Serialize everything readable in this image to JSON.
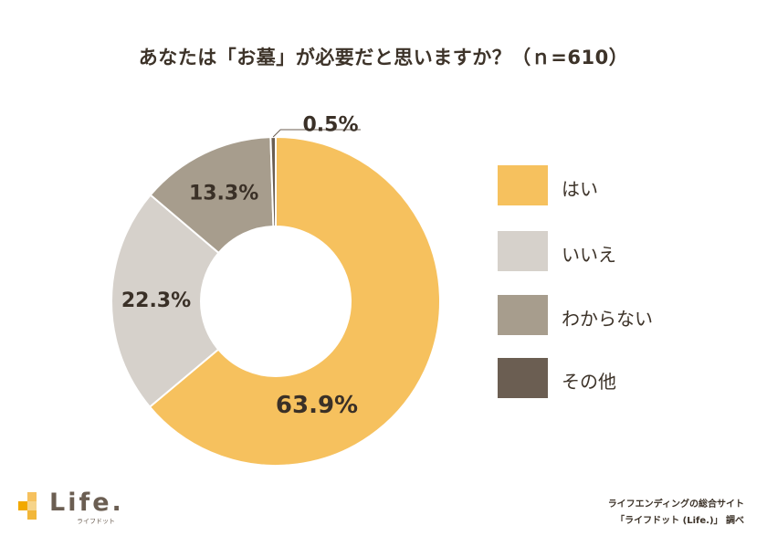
{
  "chart_data": {
    "type": "pie",
    "subtype": "donut",
    "title": "あなたは「お墓」が必要だと思いますか？（ｎ=610）",
    "categories": [
      "はい",
      "いいえ",
      "わからない",
      "その他"
    ],
    "values": [
      63.9,
      22.3,
      13.3,
      0.5
    ],
    "value_labels": [
      "63.9%",
      "22.3%",
      "13.3%",
      "0.5%"
    ],
    "colors": [
      "#f6c15e",
      "#d6d1cb",
      "#a79d8d",
      "#6b5e52"
    ],
    "legend_position": "right"
  },
  "logo": {
    "name": "Life.",
    "subtitle": "ライフドット"
  },
  "credit": {
    "line1": "ライフエンディングの総合サイト",
    "line2": "「ライフドット (Life.)」 調べ"
  }
}
